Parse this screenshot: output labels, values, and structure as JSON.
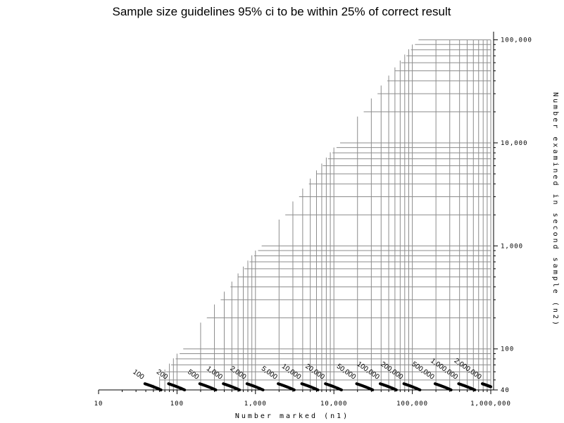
{
  "chart_data": {
    "type": "line",
    "title": "Sample size guidelines 95% ci to be within 25% of correct result",
    "xlabel": "Number marked (n1)",
    "ylabel": "Number examined in second sample (n2)",
    "x_scale": "log",
    "y_scale": "log",
    "xlim": [
      10,
      1000000
    ],
    "ylim": [
      40,
      120000
    ],
    "x_ticks": [
      {
        "value": 10,
        "label": "10"
      },
      {
        "value": 100,
        "label": "100"
      },
      {
        "value": 1000,
        "label": "1,000"
      },
      {
        "value": 10000,
        "label": "10,000"
      },
      {
        "value": 100000,
        "label": "100,000"
      },
      {
        "value": 1000000,
        "label": "1,000,000"
      }
    ],
    "y_ticks": [
      {
        "value": 40,
        "label": "40"
      },
      {
        "value": 100,
        "label": "100"
      },
      {
        "value": 1000,
        "label": "1,000"
      },
      {
        "value": 10000,
        "label": "10,000"
      },
      {
        "value": 100000,
        "label": "100,000"
      }
    ],
    "grid": "staircase of gridlines above the curves",
    "curve_model": "y-intercept-shift family; each series approaches n2 = 73*N/n1 and reaches n2 = 40 near n1 = 0.625*N",
    "series": [
      {
        "name": "100",
        "N": 100
      },
      {
        "name": "200",
        "N": 200
      },
      {
        "name": "500",
        "N": 500
      },
      {
        "name": "1,000",
        "N": 1000
      },
      {
        "name": "2,000",
        "N": 2000
      },
      {
        "name": "5,000",
        "N": 5000
      },
      {
        "name": "10,000",
        "N": 10000
      },
      {
        "name": "20,000",
        "N": 20000
      },
      {
        "name": "50,000",
        "N": 50000
      },
      {
        "name": "100,000",
        "N": 100000
      },
      {
        "name": "200,000",
        "N": 200000
      },
      {
        "name": "500,000",
        "N": 500000
      },
      {
        "name": "1,000,000",
        "N": 1000000
      },
      {
        "name": "2,000,000",
        "N": 2000000
      },
      {
        "name": "5,000,000",
        "N": 5000000
      },
      {
        "name": "10,000,000",
        "N": 10000000
      }
    ]
  }
}
